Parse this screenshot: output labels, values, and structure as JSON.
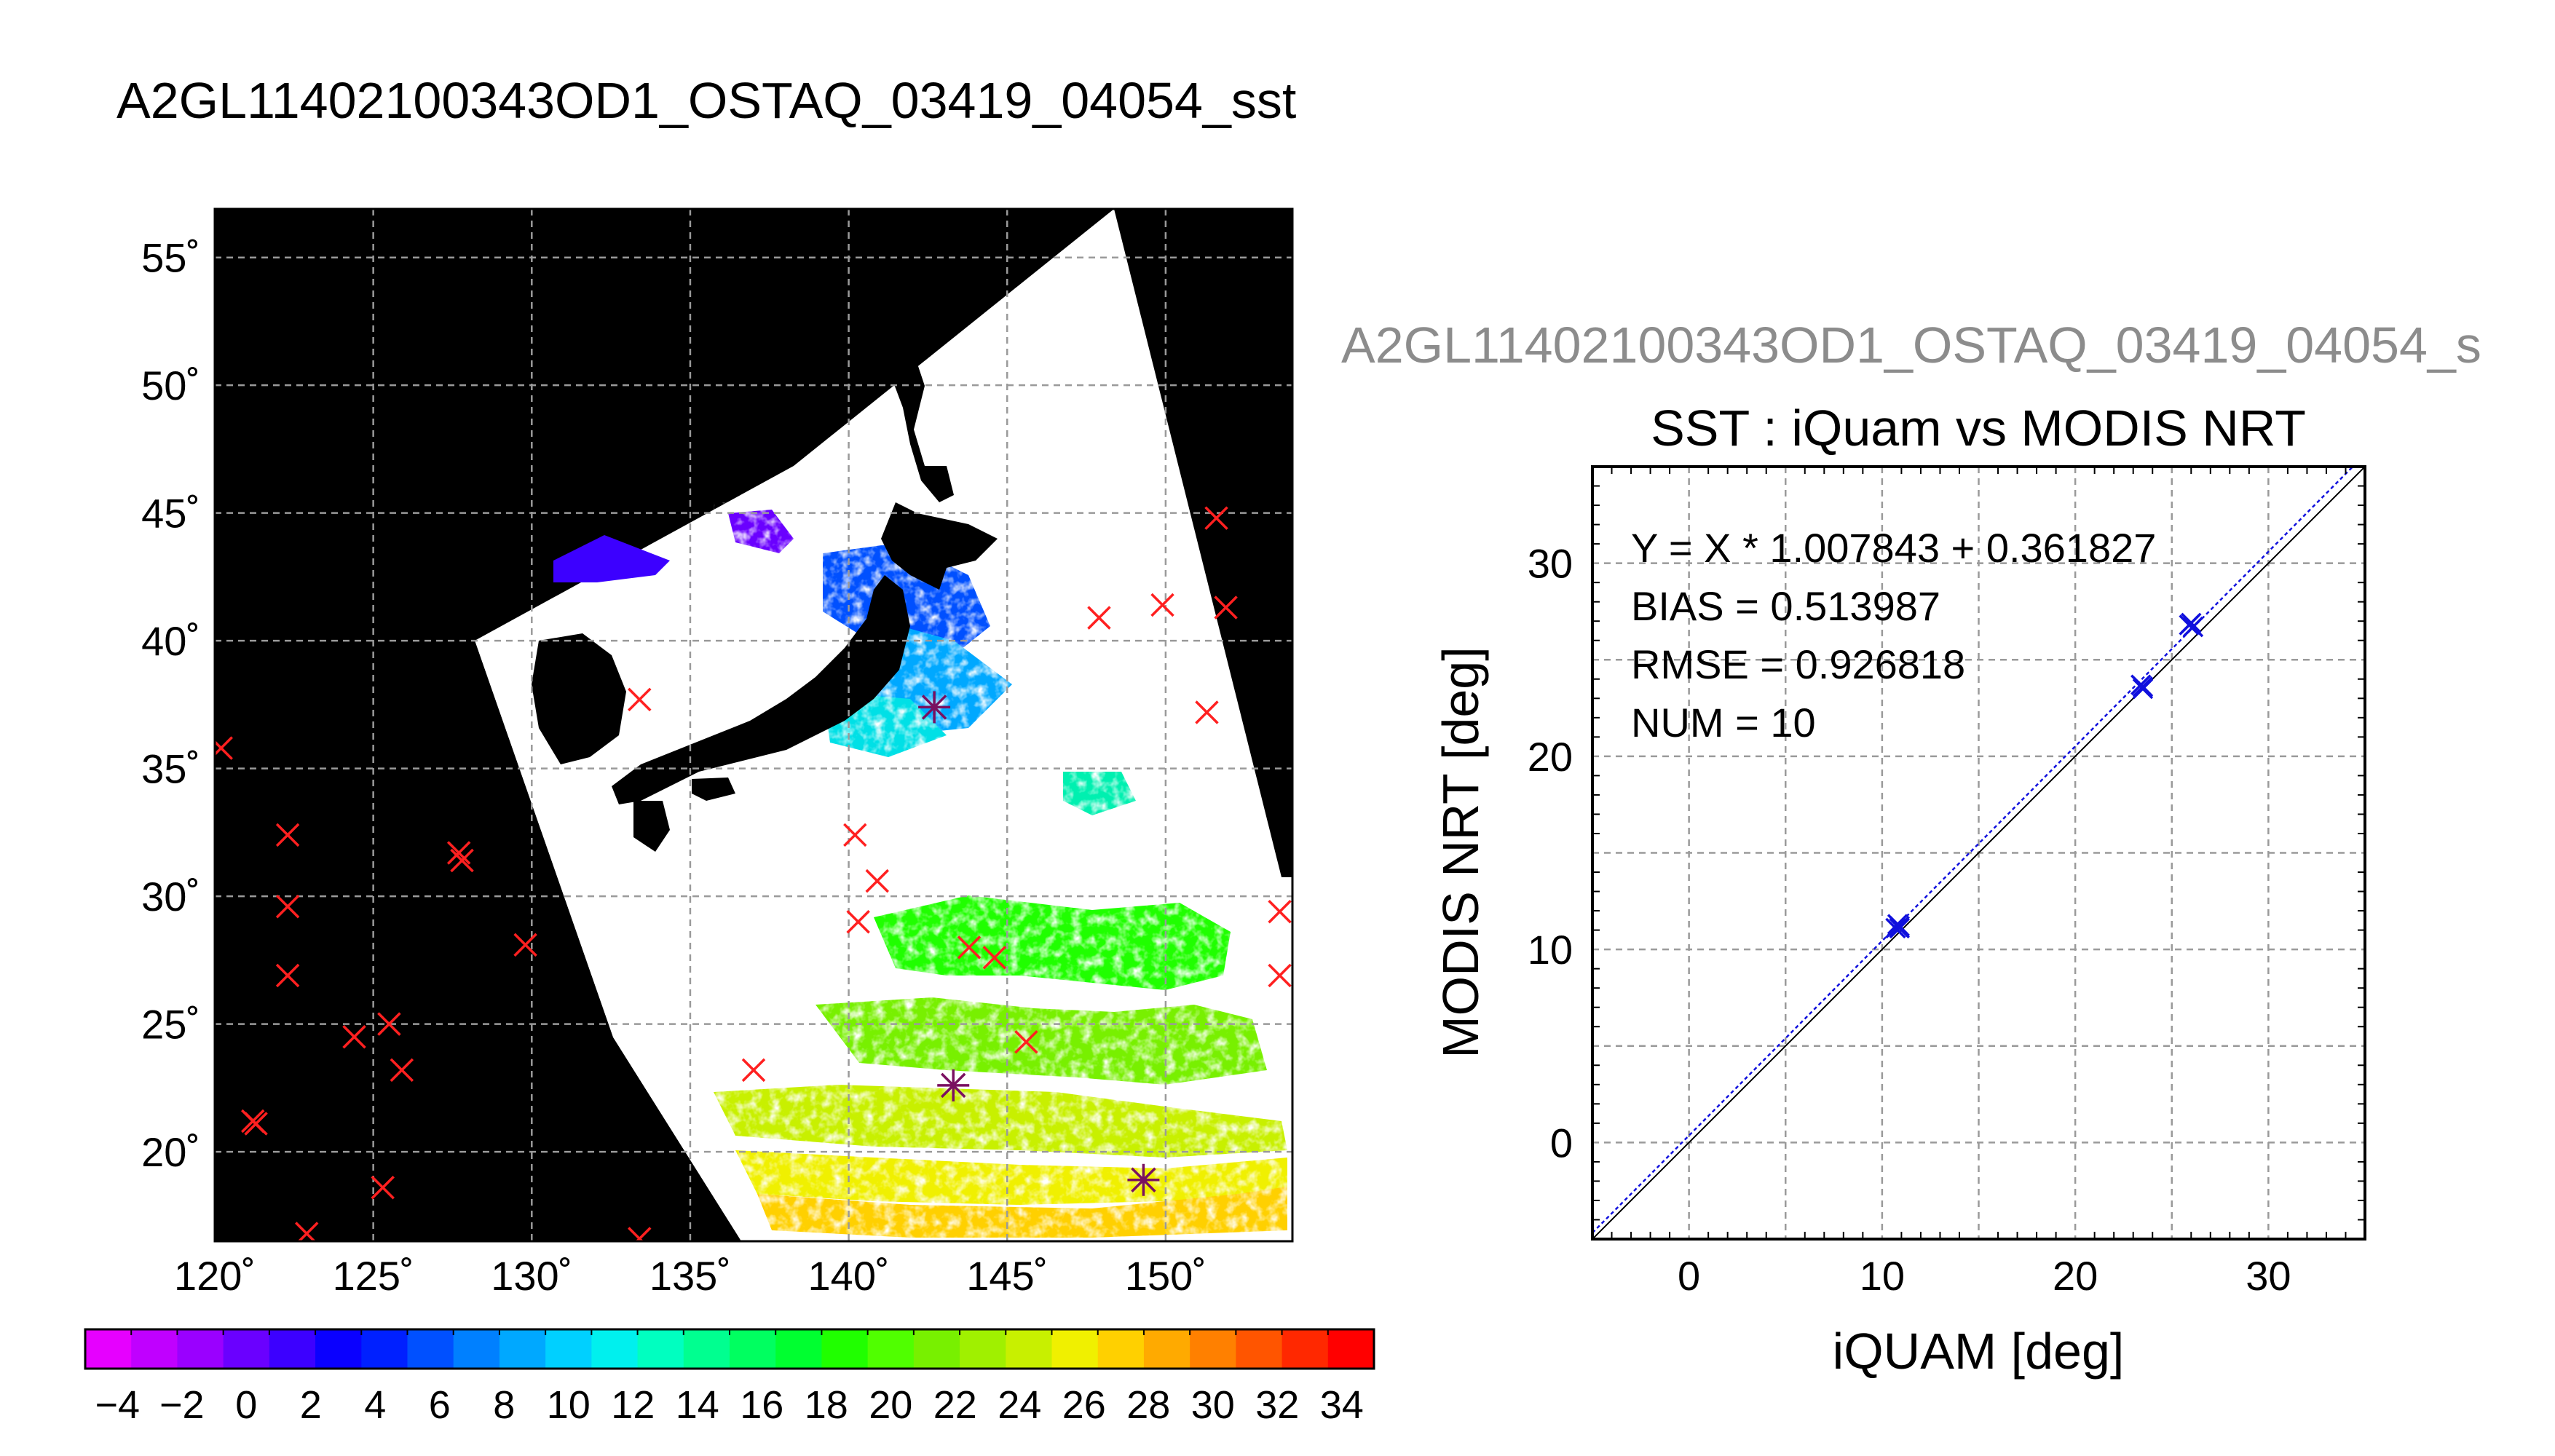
{
  "map_panel": {
    "title": "A2GL11402100343OD1_OSTAQ_03419_04054_sst",
    "lon_ticks": [
      "120˚",
      "125˚",
      "130˚",
      "135˚",
      "140˚",
      "145˚",
      "150˚"
    ],
    "lat_ticks": [
      "55˚",
      "50˚",
      "45˚",
      "40˚",
      "35˚",
      "30˚",
      "25˚",
      "20˚"
    ],
    "lon_range": [
      120,
      154
    ],
    "lat_range": [
      16.5,
      56.9
    ],
    "colors": {
      "land_and_outside": "#000000",
      "cloud": "#ffffff",
      "grid": "#9a9a9a",
      "iquam_points": "#ff2020",
      "matchup_points": "#7a1060"
    }
  },
  "colorbar": {
    "tick_labels": [
      "−4",
      "−2",
      "0",
      "2",
      "4",
      "6",
      "8",
      "10",
      "12",
      "14",
      "16",
      "18",
      "20",
      "22",
      "24",
      "26",
      "28",
      "30",
      "32",
      "34"
    ],
    "range": [
      -5,
      35
    ],
    "colors": [
      "#e600ff",
      "#c000ff",
      "#9a00ff",
      "#6a00ff",
      "#3c00ff",
      "#0a00ff",
      "#0020ff",
      "#0050ff",
      "#0080ff",
      "#00a8ff",
      "#00d0ff",
      "#00f0ee",
      "#00ffc0",
      "#00ff90",
      "#00ff60",
      "#00ff30",
      "#20ff00",
      "#50ff00",
      "#78f000",
      "#a0f000",
      "#c8f000",
      "#f0f000",
      "#ffd000",
      "#ffaa00",
      "#ff8000",
      "#ff5500",
      "#ff2800",
      "#ff0000"
    ]
  },
  "scatter_panel": {
    "overflow_title": "A2GL11402100343OD1_OSTAQ_03419_04054_s",
    "title": "SST : iQuam vs MODIS NRT",
    "stats": [
      "Y = X * 1.007843 + 0.361827",
      "BIAS = 0.513987",
      "RMSE = 0.926818",
      "NUM = 10"
    ],
    "x_ticks": [
      "0",
      "10",
      "20",
      "30"
    ],
    "y_ticks": [
      "0",
      "10",
      "20",
      "30"
    ],
    "colors": {
      "points": "#1010dd",
      "fit_line": "#1010dd",
      "identity_line": "#000000",
      "grid": "#9a9a9a"
    }
  },
  "chart_data": [
    {
      "type": "scatter",
      "subtype": "map",
      "title": "A2GL11402100343OD1_OSTAQ_03419_04054_sst",
      "xlim": [
        120,
        154
      ],
      "ylim": [
        16.5,
        56.9
      ],
      "grid": true,
      "series": [
        {
          "marker": "x",
          "x": [
            120.2,
            122.3,
            122.3,
            122.3,
            121.2,
            121.3,
            124.4,
            125.5,
            125.9,
            125.3,
            122.9,
            127.7,
            127.8,
            129.8,
            133.4,
            137.0,
            140.2,
            140.3,
            140.9,
            143.8,
            144.6,
            145.6,
            147.9,
            149.9,
            151.3,
            151.6,
            151.9,
            153.6,
            153.6,
            133.4
          ],
          "y": [
            35.8,
            32.4,
            29.6,
            26.9,
            21.2,
            21.1,
            24.5,
            25.0,
            23.2,
            18.6,
            16.8,
            31.7,
            31.4,
            28.1,
            37.7,
            23.2,
            32.4,
            29.0,
            30.6,
            28.0,
            27.6,
            24.3,
            40.9,
            41.4,
            37.2,
            44.8,
            41.3,
            29.4,
            26.9,
            16.6
          ]
        },
        {
          "marker": "asterisk",
          "x": [
            142.7,
            143.3,
            149.3
          ],
          "y": [
            37.4,
            22.6,
            18.9
          ]
        }
      ]
    },
    {
      "type": "scatter",
      "title": "SST : iQuam vs MODIS NRT",
      "xlabel": "iQUAM [deg]",
      "ylabel": "MODIS NRT [deg]",
      "xlim": [
        -5,
        35
      ],
      "ylim": [
        -5,
        35
      ],
      "grid": true,
      "fit": {
        "slope": 1.007843,
        "intercept": 0.361827
      },
      "series": [
        {
          "x": [
            10.7,
            10.8,
            10.9,
            23.4,
            23.5,
            25.9,
            26.0,
            26.1,
            10.9,
            23.5
          ],
          "y": [
            11.1,
            11.3,
            11.2,
            23.7,
            23.5,
            26.8,
            26.9,
            26.7,
            11.1,
            23.6
          ]
        }
      ]
    }
  ]
}
